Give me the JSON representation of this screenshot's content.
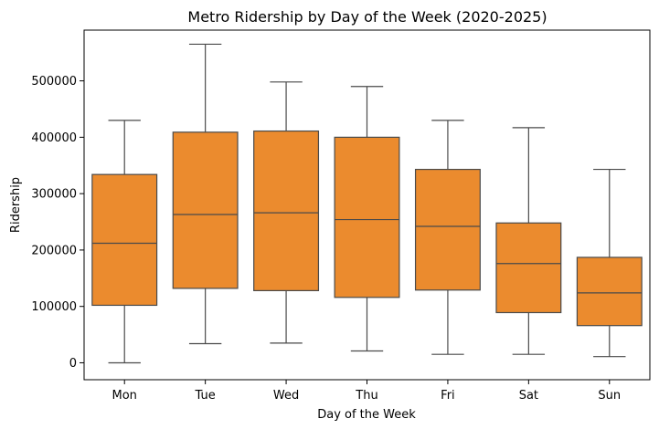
{
  "chart_data": {
    "type": "box",
    "title": "Metro Ridership by Day of the Week (2020-2025)",
    "xlabel": "Day of the Week",
    "ylabel": "Ridership",
    "ylim": [
      -30000,
      590000
    ],
    "yticks": [
      0,
      100000,
      200000,
      300000,
      400000,
      500000
    ],
    "grid": false,
    "box_color": "#eb8b2e",
    "line_color": "#4a4a4a",
    "categories": [
      "Mon",
      "Tue",
      "Wed",
      "Thu",
      "Fri",
      "Sat",
      "Sun"
    ],
    "boxes": [
      {
        "label": "Mon",
        "whisker_low": 0,
        "q1": 102000,
        "median": 212000,
        "q3": 334000,
        "whisker_high": 430000
      },
      {
        "label": "Tue",
        "whisker_low": 34000,
        "q1": 132000,
        "median": 263000,
        "q3": 409000,
        "whisker_high": 565000
      },
      {
        "label": "Wed",
        "whisker_low": 35000,
        "q1": 128000,
        "median": 266000,
        "q3": 411000,
        "whisker_high": 498000
      },
      {
        "label": "Thu",
        "whisker_low": 21000,
        "q1": 116000,
        "median": 254000,
        "q3": 400000,
        "whisker_high": 490000
      },
      {
        "label": "Fri",
        "whisker_low": 15000,
        "q1": 129000,
        "median": 242000,
        "q3": 343000,
        "whisker_high": 430000
      },
      {
        "label": "Sat",
        "whisker_low": 15000,
        "q1": 89000,
        "median": 176000,
        "q3": 248000,
        "whisker_high": 417000
      },
      {
        "label": "Sun",
        "whisker_low": 11000,
        "q1": 66000,
        "median": 124000,
        "q3": 187000,
        "whisker_high": 343000
      }
    ]
  }
}
